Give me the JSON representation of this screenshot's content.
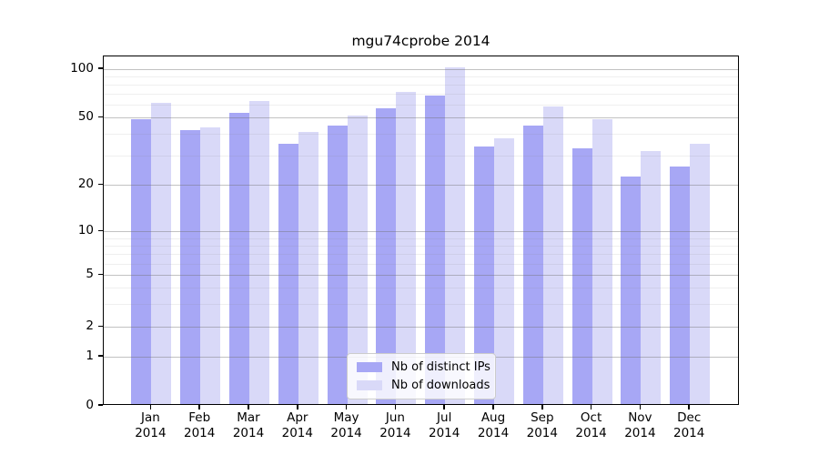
{
  "title": "mgu74cprobe 2014",
  "chart_data": {
    "type": "bar",
    "title": "mgu74cprobe 2014",
    "year": "2014",
    "categories": [
      "Jan",
      "Feb",
      "Mar",
      "Apr",
      "May",
      "Jun",
      "Jul",
      "Aug",
      "Sep",
      "Oct",
      "Nov",
      "Dec"
    ],
    "series": [
      {
        "name": "Nb of distinct IPs",
        "color": "#a7a7f5",
        "values": [
          48,
          41,
          52,
          34,
          44,
          56,
          67,
          33,
          44,
          32,
          22,
          25
        ]
      },
      {
        "name": "Nb of downloads",
        "color": "#d9d9f8",
        "values": [
          60,
          43,
          62,
          40,
          50,
          70,
          100,
          37,
          57,
          48,
          31,
          34
        ]
      }
    ],
    "y_axis": {
      "scale": "log-like",
      "major_ticks": [
        0,
        1,
        2,
        5,
        10,
        20,
        50,
        100
      ],
      "minor_gridlines": [
        3,
        4,
        6,
        7,
        8,
        9,
        30,
        40,
        60,
        70,
        80,
        90
      ],
      "ylim": [
        0,
        115
      ]
    },
    "x_axis": {
      "label_line2": "2014"
    },
    "legend": {
      "position": "lower center"
    },
    "grid": true
  },
  "colors": {
    "bar_dark": "#a7a7f5",
    "bar_light": "#d9d9f8",
    "axis": "#000000",
    "legend_border": "#cccccc"
  }
}
